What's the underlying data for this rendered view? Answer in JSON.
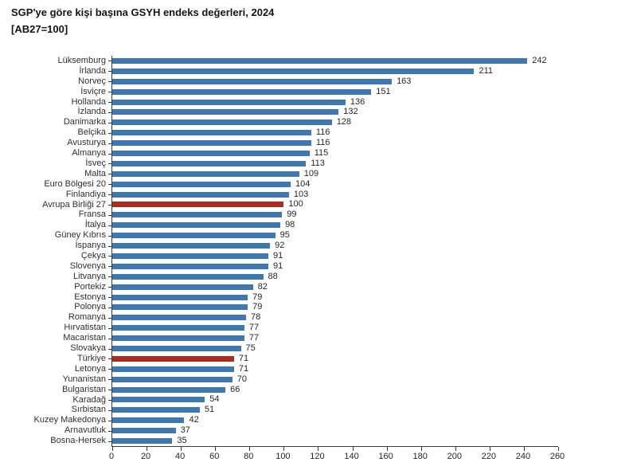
{
  "header": {
    "title": "SGP'ye göre kişi başına GSYH endeks değerleri, 2024",
    "subtitle": "[AB27=100]"
  },
  "chart_data": {
    "type": "bar",
    "orientation": "horizontal",
    "title": "SGP'ye göre kişi başına GSYH endeks değerleri, 2024",
    "subtitle": "[AB27=100]",
    "xlabel": "",
    "ylabel": "",
    "xlim": [
      0,
      260
    ],
    "x_ticks": [
      0,
      20,
      40,
      60,
      80,
      100,
      120,
      140,
      160,
      180,
      200,
      220,
      240,
      260
    ],
    "grid": false,
    "legend": "none",
    "value_labels_shown": true,
    "bar_color": "#3f77b0",
    "highlight_color": "#ad2a1f",
    "axis_color": "#3a3a3a",
    "text_color": "#262626",
    "highlighted_categories": [
      "Avrupa Birliği 27",
      "Türkiye"
    ],
    "categories": [
      "Lüksemburg",
      "İrlanda",
      "Norveç",
      "İsviçre",
      "Hollanda",
      "İzlanda",
      "Danimarka",
      "Belçika",
      "Avusturya",
      "Almanya",
      "İsveç",
      "Malta",
      "Euro Bölgesi 20",
      "Finlandiya",
      "Avrupa Birliği 27",
      "Fransa",
      "İtalya",
      "Güney Kıbrıs",
      "İspanya",
      "Çekya",
      "Slovenya",
      "Litvanya",
      "Portekiz",
      "Estonya",
      "Polonya",
      "Romanya",
      "Hırvatistan",
      "Macaristan",
      "Slovakya",
      "Türkiye",
      "Letonya",
      "Yunanistan",
      "Bulgaristan",
      "Karadağ",
      "Sırbistan",
      "Kuzey Makedonya",
      "Arnavutluk",
      "Bosna-Hersek"
    ],
    "values": [
      242,
      211,
      163,
      151,
      136,
      132,
      128,
      116,
      116,
      115,
      113,
      109,
      104,
      103,
      100,
      99,
      98,
      95,
      92,
      91,
      91,
      88,
      82,
      79,
      79,
      78,
      77,
      77,
      75,
      71,
      71,
      70,
      66,
      54,
      51,
      42,
      37,
      35
    ]
  }
}
